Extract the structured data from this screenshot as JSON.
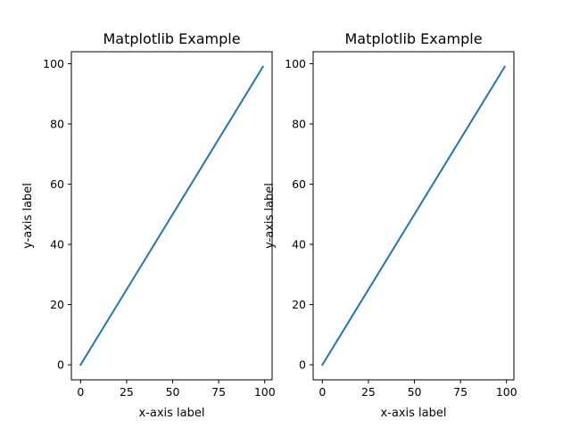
{
  "figure": {
    "background": "#ffffff"
  },
  "chart_data": [
    {
      "type": "line",
      "title": "Matplotlib Example",
      "xlabel": "x-axis label",
      "ylabel": "y-axis label",
      "xlim": [
        -5,
        104
      ],
      "ylim": [
        -5,
        104
      ],
      "xticks": [
        0,
        25,
        50,
        75,
        100
      ],
      "xtick_labels": [
        "0",
        "25",
        "50",
        "75",
        "100"
      ],
      "yticks": [
        0,
        20,
        40,
        60,
        80,
        100
      ],
      "ytick_labels": [
        "0",
        "20",
        "40",
        "60",
        "80",
        "100"
      ],
      "grid": false,
      "series": [
        {
          "color": "#1f77b4",
          "x": [
            0,
            99
          ],
          "y": [
            0,
            99
          ]
        }
      ]
    },
    {
      "type": "line",
      "title": "Matplotlib Example",
      "xlabel": "x-axis label",
      "ylabel": "y-axis label",
      "xlim": [
        -5,
        104
      ],
      "ylim": [
        -5,
        104
      ],
      "xticks": [
        0,
        25,
        50,
        75,
        100
      ],
      "xtick_labels": [
        "0",
        "25",
        "50",
        "75",
        "100"
      ],
      "yticks": [
        0,
        20,
        40,
        60,
        80,
        100
      ],
      "ytick_labels": [
        "0",
        "20",
        "40",
        "60",
        "80",
        "100"
      ],
      "grid": false,
      "series": [
        {
          "color": "#1f77b4",
          "x": [
            0,
            99
          ],
          "y": [
            0,
            99
          ]
        }
      ]
    }
  ]
}
